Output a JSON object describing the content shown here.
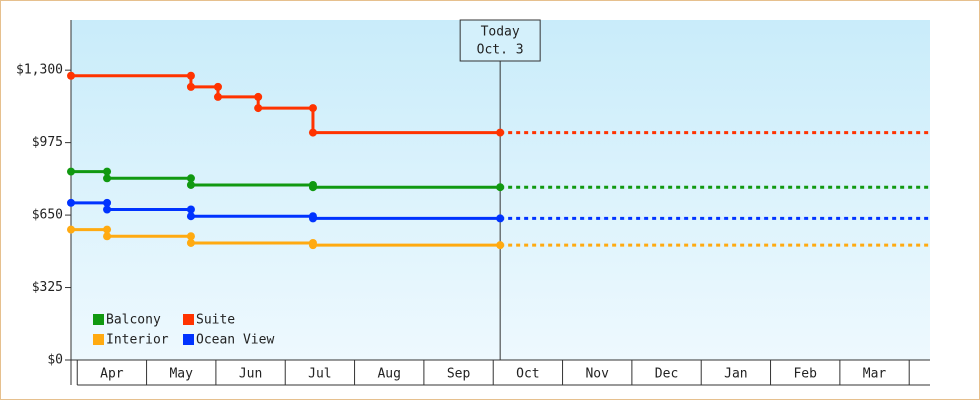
{
  "chart_data": {
    "type": "step-line",
    "categories": [
      "Apr",
      "May",
      "Jun",
      "Jul",
      "Aug",
      "Sep",
      "Oct",
      "Nov",
      "Dec",
      "Jan",
      "Feb",
      "Mar"
    ],
    "xlim": [
      -0.09,
      12.3
    ],
    "ylim": [
      0,
      1525
    ],
    "yticks": [
      {
        "value": 0,
        "label": "$0"
      },
      {
        "value": 325,
        "label": "$325"
      },
      {
        "value": 650,
        "label": "$650"
      },
      {
        "value": 975,
        "label": "$975"
      },
      {
        "value": 1300,
        "label": "$1,300"
      }
    ],
    "today": {
      "x": 6.1,
      "label": [
        "Today",
        "Oct. 3"
      ]
    },
    "series": [
      {
        "name": "Balcony",
        "color": "#119911",
        "x": [
          -0.09,
          0.43,
          1.64,
          3.4,
          6.1
        ],
        "values": [
          845,
          815,
          785,
          775,
          775
        ]
      },
      {
        "name": "Suite",
        "color": "#ff3300",
        "x": [
          -0.09,
          1.64,
          2.03,
          2.61,
          3.4,
          6.1
        ],
        "values": [
          1275,
          1225,
          1180,
          1130,
          1020,
          1020
        ]
      },
      {
        "name": "Interior",
        "color": "#ffaa11",
        "x": [
          -0.09,
          0.43,
          1.64,
          3.4,
          6.1
        ],
        "values": [
          585,
          555,
          525,
          515,
          515
        ]
      },
      {
        "name": "Ocean View",
        "color": "#0033ff",
        "x": [
          -0.09,
          0.43,
          1.64,
          3.4,
          6.1
        ],
        "values": [
          705,
          675,
          645,
          635,
          635
        ]
      }
    ]
  }
}
